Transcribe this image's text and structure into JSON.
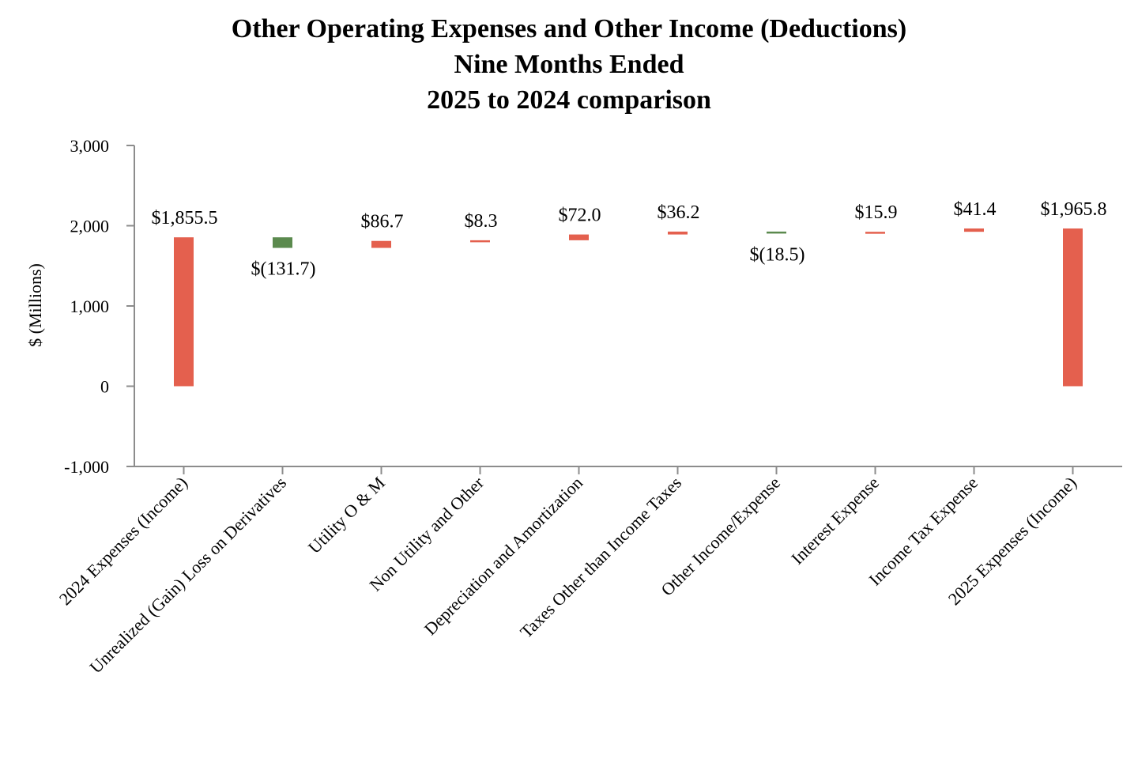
{
  "colors": {
    "increase": "#e4604e",
    "decrease": "#5b8a4e",
    "total": "#e4604e",
    "axis": "#8c8c8c"
  },
  "chart_data": {
    "type": "bar",
    "subtype": "waterfall",
    "title_lines": [
      "Other Operating Expenses and Other Income (Deductions)",
      "Nine Months Ended",
      "2025 to 2024 comparison"
    ],
    "xlabel": "",
    "ylabel": "$ (Millions)",
    "ylim": [
      -1000,
      3000
    ],
    "yticks": [
      3000,
      2000,
      1000,
      0,
      -1000
    ],
    "ytick_labels": [
      "3,000",
      "2,000",
      "1,000",
      "0",
      "-1,000"
    ],
    "grid": false,
    "legend": "none",
    "categories": [
      "2024 Expenses (Income)",
      "Unrealized (Gain) Loss on Derivatives",
      "Utility O & M",
      "Non Utility and Other",
      "Depreciation and Amortization",
      "Taxes Other than Income Taxes",
      "Other Income/Expense",
      "Interest Expense",
      "Income Tax Expense",
      "2025 Expenses (Income)"
    ],
    "values": [
      1855.5,
      -131.7,
      86.7,
      8.3,
      72.0,
      36.2,
      -18.5,
      15.9,
      41.4,
      1965.8
    ],
    "kinds": [
      "total",
      "change",
      "change",
      "change",
      "change",
      "change",
      "change",
      "change",
      "change",
      "total"
    ],
    "value_labels": [
      "$1,855.5",
      "$(131.7)",
      "$86.7",
      "$8.3",
      "$72.0",
      "$36.2",
      "$(18.5)",
      "$15.9",
      "$41.4",
      "$1,965.8"
    ]
  }
}
